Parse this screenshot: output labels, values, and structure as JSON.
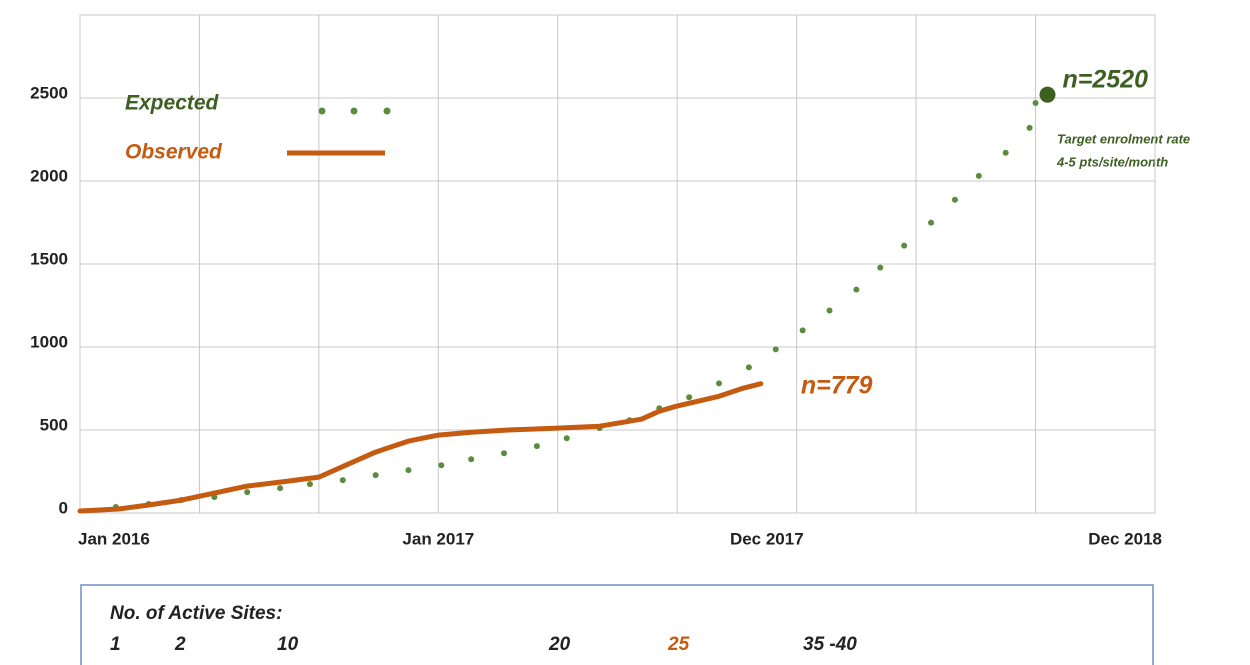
{
  "chart_data": {
    "type": "line",
    "xlim": [
      0,
      36
    ],
    "ylim": [
      0,
      3000
    ],
    "yticks": [
      0,
      500,
      1000,
      1500,
      2000,
      2500
    ],
    "xticks": [
      {
        "value": 0,
        "label": "Jan 2016"
      },
      {
        "value": 12,
        "label": "Jan 2017"
      },
      {
        "value": 23,
        "label": "Dec 2017"
      },
      {
        "value": 35,
        "label": "Dec 2018"
      }
    ],
    "xgrid": [
      0,
      4,
      8,
      12,
      16,
      20,
      24,
      28,
      32,
      36
    ],
    "grid": true,
    "series": [
      {
        "name": "Expected",
        "color": "#5b8c3e",
        "label_color": "#3d5f22",
        "style": "dotted",
        "x": [
          1.2,
          2.3,
          3.4,
          4.5,
          5.6,
          6.7,
          7.7,
          8.8,
          9.9,
          11,
          12.1,
          13.1,
          14.2,
          15.3,
          16.3,
          17.4,
          18.4,
          19.4,
          20.4,
          21.4,
          22.4,
          23.3,
          24.2,
          25.1,
          26,
          26.8,
          27.6,
          28.5,
          29.3,
          30.1,
          31,
          31.8,
          32
        ],
        "values": [
          36,
          54,
          78,
          96,
          126,
          150,
          174,
          198,
          228,
          258,
          288,
          324,
          360,
          403,
          450,
          511,
          559,
          631,
          697,
          781,
          877,
          986,
          1100,
          1220,
          1346,
          1478,
          1611,
          1749,
          1887,
          2031,
          2170,
          2320,
          2470
        ]
      },
      {
        "name": "Observed",
        "color": "#c55a11",
        "label_color": "#c55a11",
        "style": "solid",
        "x": [
          0,
          1.3,
          2.3,
          3.4,
          4.5,
          5.6,
          6.7,
          8,
          8.9,
          9.9,
          11,
          12,
          13.1,
          14.2,
          15.9,
          17.4,
          18.8,
          19.4,
          19.96,
          21.4,
          22.2,
          22.8
        ],
        "values": [
          12,
          24,
          48,
          78,
          120,
          162,
          186,
          216,
          288,
          367,
          433,
          469,
          487,
          499,
          511,
          523,
          565,
          613,
          643,
          703,
          751,
          779
        ]
      }
    ],
    "annotations": [
      {
        "text": "n=2520",
        "x": 32.4,
        "y": 2520,
        "color": "#3d5f22",
        "marker": true
      },
      {
        "text": "n=779",
        "x": 22.8,
        "y": 779,
        "color": "#c55a11",
        "marker": false
      }
    ],
    "target_note": [
      "Target enrolment rate",
      "4-5 pts/site/month"
    ],
    "active_sites": {
      "title": "No. of Active Sites:",
      "items": [
        {
          "text": "1",
          "color": "#222222"
        },
        {
          "text": "2",
          "color": "#222222"
        },
        {
          "text": "10",
          "color": "#222222"
        },
        {
          "text": "20",
          "color": "#222222"
        },
        {
          "text": "25",
          "color": "#c55a11"
        },
        {
          "text": "35 -40",
          "color": "#222222"
        }
      ]
    }
  }
}
